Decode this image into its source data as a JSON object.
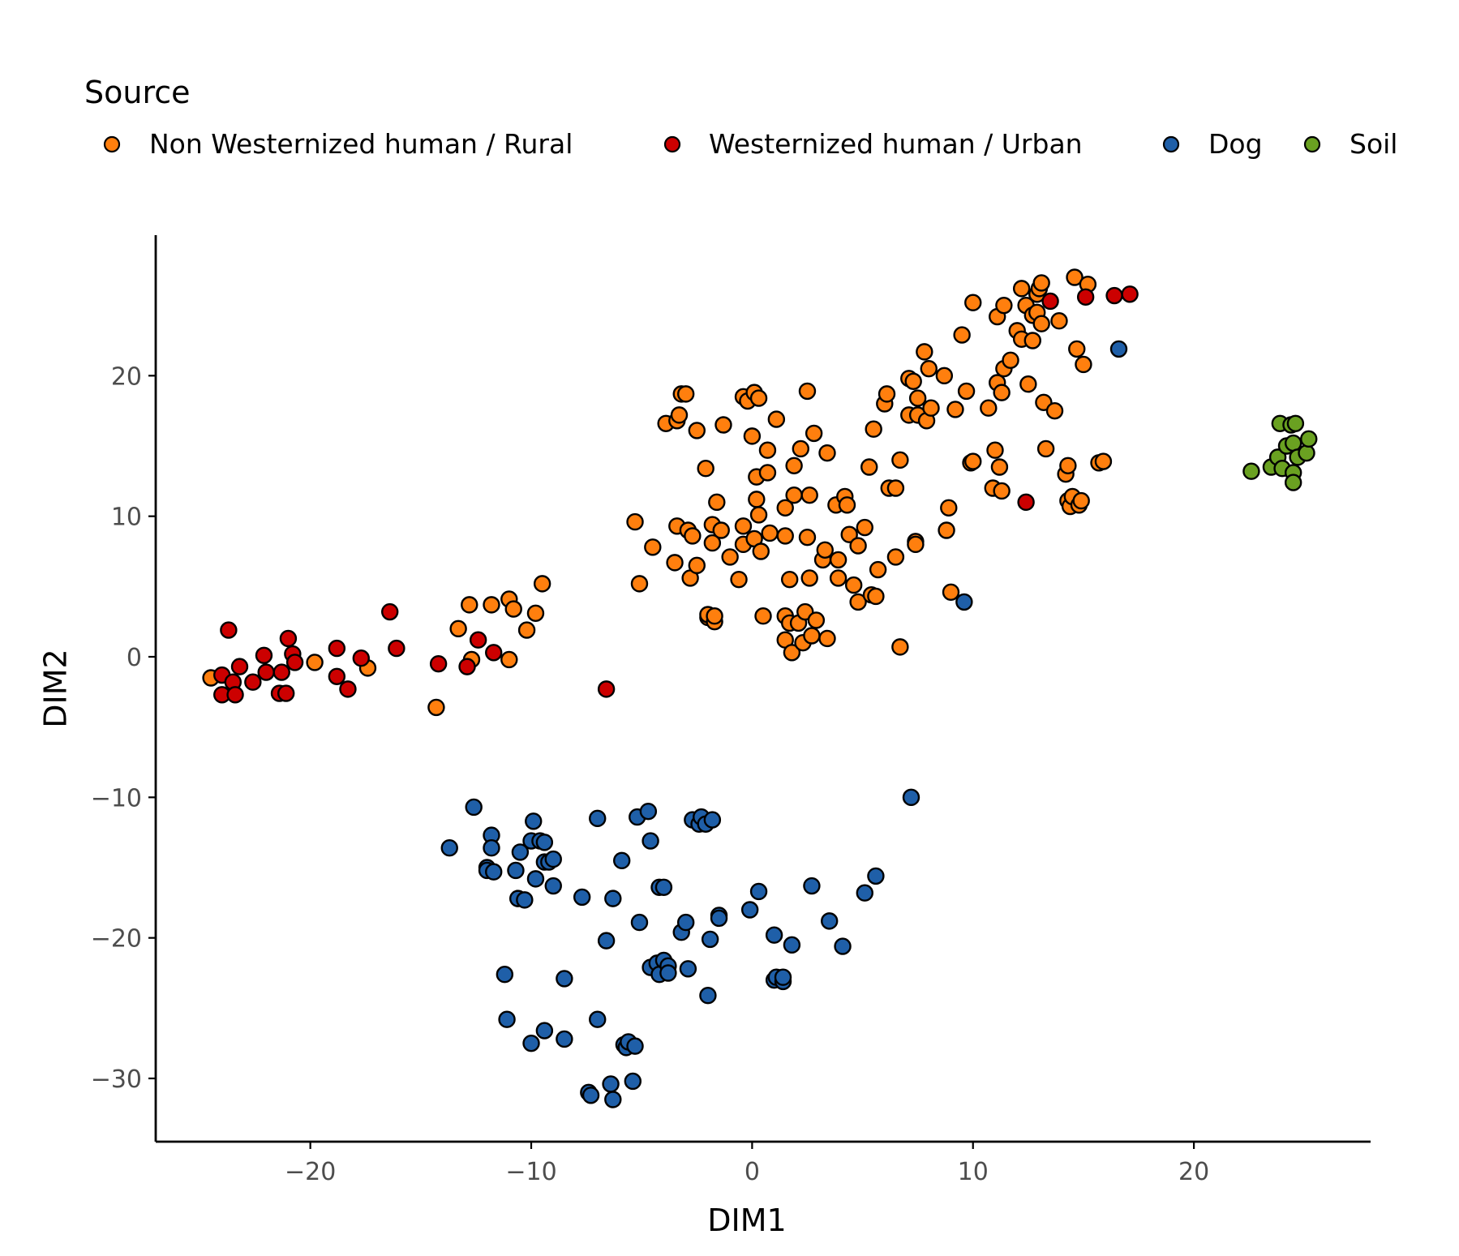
{
  "chart_data": {
    "type": "scatter",
    "xlabel": "DIM1",
    "ylabel": "DIM2",
    "xlim": [
      -27,
      28
    ],
    "ylim": [
      -34.5,
      30
    ],
    "xticks": [
      -20,
      -10,
      0,
      10,
      20
    ],
    "yticks": [
      -30,
      -20,
      -10,
      0,
      10,
      20
    ],
    "xtick_labels": [
      "−20",
      "−10",
      "0",
      "10",
      "20"
    ],
    "ytick_labels": [
      "−30",
      "−20",
      "−10",
      "0",
      "10",
      "20"
    ],
    "grid": false,
    "legend": {
      "title": "Source",
      "position": "top"
    },
    "series": [
      {
        "name": "Non Westernized human / Rural",
        "color": "#FF7F0E",
        "points": [
          [
            -24.5,
            -1.5
          ],
          [
            -19.8,
            -0.4
          ],
          [
            -17.4,
            -0.8
          ],
          [
            -14.3,
            -3.6
          ],
          [
            -13.3,
            2.0
          ],
          [
            -12.8,
            3.7
          ],
          [
            -11.8,
            3.7
          ],
          [
            -12.7,
            -0.2
          ],
          [
            -11.0,
            4.1
          ],
          [
            -10.8,
            3.4
          ],
          [
            -11.0,
            -0.2
          ],
          [
            -10.2,
            1.9
          ],
          [
            -9.8,
            3.1
          ],
          [
            -9.5,
            5.2
          ],
          [
            -5.3,
            9.6
          ],
          [
            -5.1,
            5.2
          ],
          [
            -4.5,
            7.8
          ],
          [
            -3.9,
            16.6
          ],
          [
            -3.5,
            6.7
          ],
          [
            -3.4,
            9.3
          ],
          [
            -3.4,
            16.8
          ],
          [
            -3.3,
            17.2
          ],
          [
            -3.2,
            18.7
          ],
          [
            -3.0,
            18.7
          ],
          [
            -2.9,
            9.0
          ],
          [
            -2.8,
            5.6
          ],
          [
            -2.7,
            8.6
          ],
          [
            -2.5,
            6.5
          ],
          [
            -2.5,
            16.1
          ],
          [
            -2.1,
            13.4
          ],
          [
            -2.0,
            2.8
          ],
          [
            -2.0,
            3.0
          ],
          [
            -1.8,
            9.4
          ],
          [
            -1.8,
            8.1
          ],
          [
            -1.7,
            2.5
          ],
          [
            -1.7,
            2.9
          ],
          [
            -1.6,
            11.0
          ],
          [
            -1.4,
            9.0
          ],
          [
            -1.3,
            16.5
          ],
          [
            -1.0,
            7.1
          ],
          [
            -0.6,
            5.5
          ],
          [
            -0.4,
            9.3
          ],
          [
            -0.4,
            8.0
          ],
          [
            -0.4,
            18.5
          ],
          [
            -0.2,
            18.2
          ],
          [
            0.0,
            15.7
          ],
          [
            0.1,
            18.8
          ],
          [
            0.1,
            8.4
          ],
          [
            0.2,
            12.8
          ],
          [
            0.2,
            11.2
          ],
          [
            0.3,
            18.4
          ],
          [
            0.3,
            10.1
          ],
          [
            0.4,
            7.5
          ],
          [
            0.5,
            2.9
          ],
          [
            0.7,
            13.1
          ],
          [
            0.7,
            14.7
          ],
          [
            0.8,
            8.8
          ],
          [
            1.1,
            16.9
          ],
          [
            1.5,
            10.6
          ],
          [
            1.5,
            8.6
          ],
          [
            1.5,
            2.9
          ],
          [
            1.5,
            1.2
          ],
          [
            1.7,
            5.5
          ],
          [
            1.7,
            2.4
          ],
          [
            1.8,
            0.3
          ],
          [
            1.9,
            13.6
          ],
          [
            1.9,
            11.5
          ],
          [
            2.1,
            2.4
          ],
          [
            2.2,
            14.8
          ],
          [
            2.3,
            1.0
          ],
          [
            2.4,
            3.2
          ],
          [
            2.5,
            8.5
          ],
          [
            2.5,
            18.9
          ],
          [
            2.6,
            5.6
          ],
          [
            2.6,
            11.5
          ],
          [
            2.7,
            1.5
          ],
          [
            2.8,
            15.9
          ],
          [
            2.9,
            2.6
          ],
          [
            3.2,
            6.9
          ],
          [
            3.3,
            7.6
          ],
          [
            3.4,
            14.5
          ],
          [
            3.4,
            1.3
          ],
          [
            3.8,
            10.8
          ],
          [
            3.9,
            6.9
          ],
          [
            3.9,
            5.6
          ],
          [
            4.2,
            11.4
          ],
          [
            4.3,
            10.8
          ],
          [
            4.4,
            8.7
          ],
          [
            4.6,
            5.1
          ],
          [
            4.8,
            7.9
          ],
          [
            4.8,
            3.9
          ],
          [
            5.1,
            9.2
          ],
          [
            5.3,
            13.5
          ],
          [
            5.4,
            4.4
          ],
          [
            5.5,
            16.2
          ],
          [
            5.6,
            4.3
          ],
          [
            5.7,
            6.2
          ],
          [
            6.0,
            18.0
          ],
          [
            6.1,
            18.7
          ],
          [
            6.2,
            12.0
          ],
          [
            6.5,
            12.0
          ],
          [
            6.5,
            7.1
          ],
          [
            6.7,
            0.7
          ],
          [
            6.7,
            14.0
          ],
          [
            7.1,
            17.2
          ],
          [
            7.1,
            19.8
          ],
          [
            7.3,
            19.6
          ],
          [
            7.4,
            8.2
          ],
          [
            7.4,
            8.0
          ],
          [
            7.5,
            18.4
          ],
          [
            7.5,
            17.2
          ],
          [
            7.8,
            21.7
          ],
          [
            7.9,
            16.8
          ],
          [
            8.0,
            20.5
          ],
          [
            8.1,
            17.7
          ],
          [
            8.7,
            20.0
          ],
          [
            8.8,
            9.0
          ],
          [
            8.9,
            10.6
          ],
          [
            9.0,
            4.6
          ],
          [
            9.2,
            17.6
          ],
          [
            9.5,
            22.9
          ],
          [
            9.7,
            18.9
          ],
          [
            9.9,
            13.8
          ],
          [
            10.0,
            13.9
          ],
          [
            10.0,
            25.2
          ],
          [
            10.7,
            17.7
          ],
          [
            10.9,
            12.0
          ],
          [
            11.0,
            14.7
          ],
          [
            11.1,
            24.2
          ],
          [
            11.1,
            19.5
          ],
          [
            11.2,
            13.5
          ],
          [
            11.3,
            18.8
          ],
          [
            11.3,
            11.8
          ],
          [
            11.4,
            20.5
          ],
          [
            11.4,
            25.0
          ],
          [
            11.7,
            21.1
          ],
          [
            12.0,
            23.2
          ],
          [
            12.2,
            26.2
          ],
          [
            12.2,
            22.6
          ],
          [
            12.4,
            25.0
          ],
          [
            12.5,
            19.4
          ],
          [
            12.7,
            24.3
          ],
          [
            12.7,
            22.5
          ],
          [
            12.9,
            24.5
          ],
          [
            12.9,
            25.8
          ],
          [
            13.0,
            26.2
          ],
          [
            13.1,
            26.6
          ],
          [
            13.1,
            23.7
          ],
          [
            13.2,
            18.1
          ],
          [
            13.3,
            14.8
          ],
          [
            13.7,
            17.5
          ],
          [
            13.9,
            23.9
          ],
          [
            14.2,
            13.0
          ],
          [
            14.3,
            13.6
          ],
          [
            14.3,
            11.1
          ],
          [
            14.4,
            10.7
          ],
          [
            14.5,
            11.4
          ],
          [
            14.6,
            27.0
          ],
          [
            14.7,
            21.9
          ],
          [
            14.8,
            10.8
          ],
          [
            14.9,
            11.1
          ],
          [
            15.0,
            20.8
          ],
          [
            15.2,
            26.5
          ],
          [
            15.7,
            13.8
          ],
          [
            15.9,
            13.9
          ]
        ]
      },
      {
        "name": "Westernized human / Urban",
        "color": "#CC0000",
        "points": [
          [
            -24.0,
            -2.7
          ],
          [
            -24.0,
            -1.3
          ],
          [
            -23.7,
            1.9
          ],
          [
            -23.5,
            -1.8
          ],
          [
            -23.4,
            -2.7
          ],
          [
            -23.2,
            -0.7
          ],
          [
            -22.6,
            -1.8
          ],
          [
            -22.1,
            0.1
          ],
          [
            -22.0,
            -1.1
          ],
          [
            -21.4,
            -2.6
          ],
          [
            -21.3,
            -1.1
          ],
          [
            -21.1,
            -2.6
          ],
          [
            -21.0,
            1.3
          ],
          [
            -20.8,
            0.2
          ],
          [
            -20.7,
            -0.4
          ],
          [
            -18.8,
            0.6
          ],
          [
            -18.8,
            -1.4
          ],
          [
            -18.3,
            -2.3
          ],
          [
            -17.7,
            -0.1
          ],
          [
            -16.4,
            3.2
          ],
          [
            -16.1,
            0.6
          ],
          [
            -14.2,
            -0.5
          ],
          [
            -12.9,
            -0.7
          ],
          [
            -12.4,
            1.2
          ],
          [
            -11.7,
            0.3
          ],
          [
            -6.6,
            -2.3
          ],
          [
            12.4,
            11.0
          ],
          [
            13.5,
            25.3
          ],
          [
            15.1,
            25.6
          ],
          [
            16.4,
            25.7
          ],
          [
            17.1,
            25.8
          ]
        ]
      },
      {
        "name": "Dog",
        "color": "#1F5FA8",
        "points": [
          [
            -13.7,
            -13.6
          ],
          [
            -12.6,
            -10.7
          ],
          [
            -12.0,
            -15.0
          ],
          [
            -12.0,
            -15.2
          ],
          [
            -11.8,
            -12.7
          ],
          [
            -11.8,
            -13.6
          ],
          [
            -11.7,
            -15.3
          ],
          [
            -11.2,
            -22.6
          ],
          [
            -11.1,
            -25.8
          ],
          [
            -10.7,
            -15.2
          ],
          [
            -10.6,
            -17.2
          ],
          [
            -10.5,
            -13.9
          ],
          [
            -10.3,
            -17.3
          ],
          [
            -10.0,
            -13.1
          ],
          [
            -10.0,
            -27.5
          ],
          [
            -9.9,
            -11.7
          ],
          [
            -9.8,
            -15.8
          ],
          [
            -9.6,
            -13.1
          ],
          [
            -9.4,
            -13.2
          ],
          [
            -9.4,
            -14.6
          ],
          [
            -9.4,
            -26.6
          ],
          [
            -9.2,
            -14.6
          ],
          [
            -9.0,
            -14.4
          ],
          [
            -9.0,
            -16.3
          ],
          [
            -8.5,
            -22.9
          ],
          [
            -8.5,
            -27.2
          ],
          [
            -7.7,
            -17.1
          ],
          [
            -7.4,
            -31.0
          ],
          [
            -7.3,
            -31.2
          ],
          [
            -7.0,
            -11.5
          ],
          [
            -7.0,
            -25.8
          ],
          [
            -6.6,
            -20.2
          ],
          [
            -6.4,
            -30.4
          ],
          [
            -6.3,
            -31.5
          ],
          [
            -6.3,
            -17.2
          ],
          [
            -5.9,
            -14.5
          ],
          [
            -5.8,
            -27.6
          ],
          [
            -5.7,
            -27.8
          ],
          [
            -5.6,
            -27.4
          ],
          [
            -5.4,
            -30.2
          ],
          [
            -5.3,
            -27.7
          ],
          [
            -5.2,
            -11.4
          ],
          [
            -5.1,
            -18.9
          ],
          [
            -4.7,
            -11.0
          ],
          [
            -4.6,
            -13.1
          ],
          [
            -4.6,
            -22.1
          ],
          [
            -4.3,
            -21.8
          ],
          [
            -4.2,
            -16.4
          ],
          [
            -4.2,
            -22.6
          ],
          [
            -4.0,
            -21.6
          ],
          [
            -4.0,
            -16.4
          ],
          [
            -3.8,
            -22.0
          ],
          [
            -3.8,
            -22.5
          ],
          [
            -3.2,
            -19.6
          ],
          [
            -3.0,
            -18.9
          ],
          [
            -2.9,
            -22.2
          ],
          [
            -2.7,
            -11.6
          ],
          [
            -2.4,
            -11.9
          ],
          [
            -2.3,
            -11.4
          ],
          [
            -2.1,
            -11.9
          ],
          [
            -2.0,
            -24.1
          ],
          [
            -1.9,
            -20.1
          ],
          [
            -1.8,
            -11.6
          ],
          [
            -1.5,
            -18.4
          ],
          [
            -1.5,
            -18.6
          ],
          [
            -0.1,
            -18.0
          ],
          [
            0.3,
            -16.7
          ],
          [
            1.0,
            -19.8
          ],
          [
            1.0,
            -23.0
          ],
          [
            1.1,
            -22.8
          ],
          [
            1.4,
            -23.1
          ],
          [
            1.4,
            -22.8
          ],
          [
            1.8,
            -20.5
          ],
          [
            2.7,
            -16.3
          ],
          [
            3.5,
            -18.8
          ],
          [
            4.1,
            -20.6
          ],
          [
            5.1,
            -16.8
          ],
          [
            5.6,
            -15.6
          ],
          [
            7.2,
            -10.0
          ],
          [
            9.6,
            3.9
          ],
          [
            16.6,
            21.9
          ]
        ]
      },
      {
        "name": "Soil",
        "color": "#6AA121",
        "points": [
          [
            22.6,
            13.2
          ],
          [
            23.5,
            13.5
          ],
          [
            23.8,
            14.2
          ],
          [
            23.9,
            16.6
          ],
          [
            24.0,
            13.4
          ],
          [
            24.2,
            15.0
          ],
          [
            24.4,
            16.5
          ],
          [
            24.5,
            13.1
          ],
          [
            24.5,
            12.4
          ],
          [
            24.5,
            15.2
          ],
          [
            24.6,
            16.6
          ],
          [
            24.7,
            14.2
          ],
          [
            25.1,
            14.5
          ],
          [
            25.2,
            15.5
          ]
        ]
      }
    ]
  }
}
